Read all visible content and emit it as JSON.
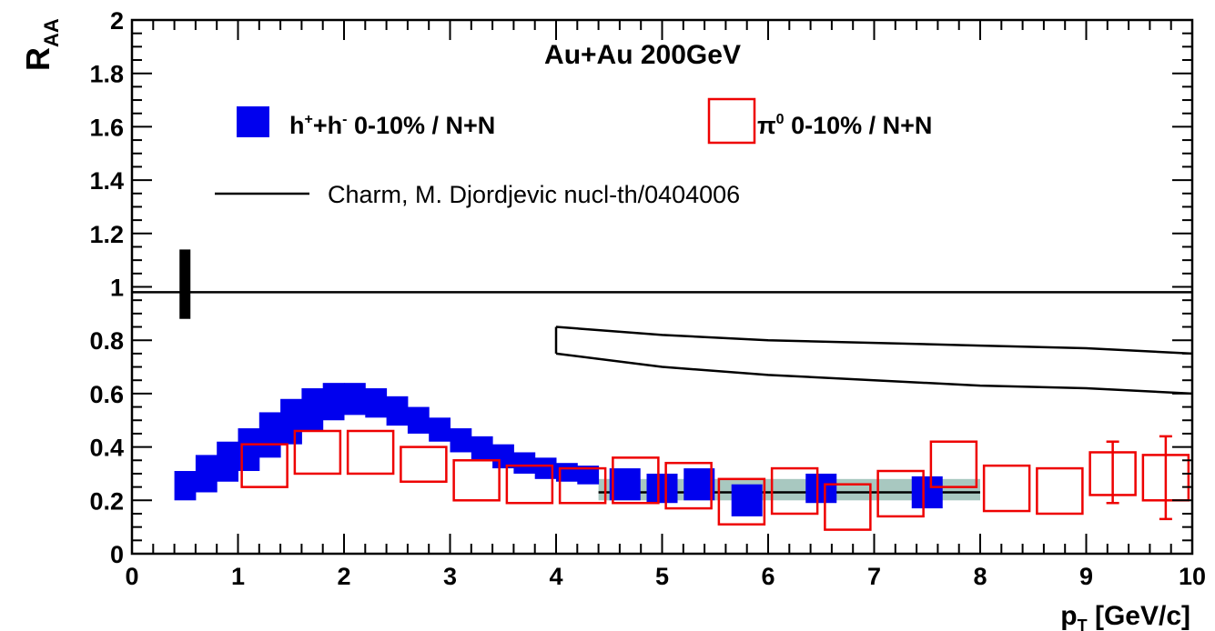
{
  "chart_data": {
    "type": "scatter",
    "title": "Au+Au 200GeV",
    "ylabel_main": "R",
    "ylabel_sub": "AA",
    "xlabel_main": "p",
    "xlabel_sub": "T",
    "xlabel_unit": " [GeV/c]",
    "xlim": [
      0,
      10
    ],
    "ylim": [
      0,
      2
    ],
    "x_ticks": [
      "0",
      "1",
      "2",
      "3",
      "4",
      "5",
      "6",
      "7",
      "8",
      "9",
      "10"
    ],
    "y_ticks": [
      {
        "v": 0,
        "t": "0"
      },
      {
        "v": 0.2,
        "t": "0.2"
      },
      {
        "v": 0.4,
        "t": "0.4"
      },
      {
        "v": 0.6,
        "t": "0.6"
      },
      {
        "v": 0.8,
        "t": "0.8"
      },
      {
        "v": 1.0,
        "t": "1"
      },
      {
        "v": 1.2,
        "t": "1.2"
      },
      {
        "v": 1.4,
        "t": "1.4"
      },
      {
        "v": 1.6,
        "t": "1.6"
      },
      {
        "v": 1.8,
        "t": "1.8"
      },
      {
        "v": 2.0,
        "t": "2"
      }
    ],
    "reference_line": 0.98,
    "normalization_error_bar": {
      "x": 0.5,
      "y_low": 0.88,
      "y_high": 1.14
    },
    "legend": {
      "hadrons": {
        "pre": "h",
        "sup1": "+",
        "mid": "+h",
        "sup2": "-",
        "post": " 0-10% / N+N"
      },
      "pi0": {
        "pre": "π",
        "sup": "0",
        "post": " 0-10% / N+N"
      },
      "charm": "Charm, M. Djordjevic nucl-th/0404006"
    },
    "colors": {
      "hadrons": "#0000ee",
      "pi0": "#ee0000",
      "syst_band": "#a8c8c0",
      "theory": "#000000"
    },
    "series": [
      {
        "name": "h+ + h- 0-10% / N+N (band)",
        "band": [
          {
            "x": 0.5,
            "lo": 0.2,
            "hi": 0.31
          },
          {
            "x": 0.7,
            "lo": 0.23,
            "hi": 0.37
          },
          {
            "x": 0.9,
            "lo": 0.27,
            "hi": 0.42
          },
          {
            "x": 1.1,
            "lo": 0.31,
            "hi": 0.47
          },
          {
            "x": 1.3,
            "lo": 0.36,
            "hi": 0.53
          },
          {
            "x": 1.5,
            "lo": 0.41,
            "hi": 0.58
          },
          {
            "x": 1.7,
            "lo": 0.46,
            "hi": 0.62
          },
          {
            "x": 1.9,
            "lo": 0.5,
            "hi": 0.64
          },
          {
            "x": 2.1,
            "lo": 0.52,
            "hi": 0.64
          },
          {
            "x": 2.3,
            "lo": 0.51,
            "hi": 0.62
          },
          {
            "x": 2.5,
            "lo": 0.48,
            "hi": 0.59
          },
          {
            "x": 2.7,
            "lo": 0.45,
            "hi": 0.55
          },
          {
            "x": 2.9,
            "lo": 0.42,
            "hi": 0.51
          },
          {
            "x": 3.1,
            "lo": 0.38,
            "hi": 0.47
          },
          {
            "x": 3.3,
            "lo": 0.35,
            "hi": 0.44
          },
          {
            "x": 3.5,
            "lo": 0.32,
            "hi": 0.41
          },
          {
            "x": 3.7,
            "lo": 0.3,
            "hi": 0.38
          },
          {
            "x": 3.9,
            "lo": 0.28,
            "hi": 0.36
          },
          {
            "x": 4.1,
            "lo": 0.27,
            "hi": 0.34
          },
          {
            "x": 4.3,
            "lo": 0.26,
            "hi": 0.33
          }
        ]
      },
      {
        "name": "h+ + h- 0-10% / N+N (points)",
        "points": [
          {
            "x": 4.65,
            "lo": 0.2,
            "hi": 0.32
          },
          {
            "x": 5.0,
            "lo": 0.19,
            "hi": 0.3
          },
          {
            "x": 5.35,
            "lo": 0.2,
            "hi": 0.32
          },
          {
            "x": 5.8,
            "lo": 0.14,
            "hi": 0.26
          },
          {
            "x": 6.5,
            "lo": 0.19,
            "hi": 0.3
          },
          {
            "x": 7.5,
            "lo": 0.17,
            "hi": 0.29
          }
        ]
      },
      {
        "name": "π0 0-10% / N+N",
        "points": [
          {
            "x": 1.25,
            "lo": 0.25,
            "hi": 0.41
          },
          {
            "x": 1.75,
            "lo": 0.3,
            "hi": 0.46
          },
          {
            "x": 2.25,
            "lo": 0.3,
            "hi": 0.46
          },
          {
            "x": 2.75,
            "lo": 0.27,
            "hi": 0.4
          },
          {
            "x": 3.25,
            "lo": 0.2,
            "hi": 0.35
          },
          {
            "x": 3.75,
            "lo": 0.19,
            "hi": 0.33
          },
          {
            "x": 4.25,
            "lo": 0.19,
            "hi": 0.32
          },
          {
            "x": 4.75,
            "lo": 0.19,
            "hi": 0.36
          },
          {
            "x": 5.25,
            "lo": 0.17,
            "hi": 0.34
          },
          {
            "x": 5.75,
            "lo": 0.11,
            "hi": 0.28
          },
          {
            "x": 6.25,
            "lo": 0.15,
            "hi": 0.32
          },
          {
            "x": 6.75,
            "lo": 0.09,
            "hi": 0.26
          },
          {
            "x": 7.25,
            "lo": 0.14,
            "hi": 0.31
          },
          {
            "x": 7.75,
            "lo": 0.25,
            "hi": 0.42
          },
          {
            "x": 8.25,
            "lo": 0.16,
            "hi": 0.33
          },
          {
            "x": 8.75,
            "lo": 0.15,
            "hi": 0.32
          },
          {
            "x": 9.25,
            "lo": 0.22,
            "hi": 0.38,
            "err_lo": 0.19,
            "err_hi": 0.42
          },
          {
            "x": 9.75,
            "lo": 0.2,
            "hi": 0.37,
            "err_lo": 0.13,
            "err_hi": 0.44
          }
        ]
      },
      {
        "name": "systematic band",
        "band": [
          {
            "x": 4.4,
            "lo": 0.2,
            "hi": 0.28
          },
          {
            "x": 8.0,
            "lo": 0.2,
            "hi": 0.28
          }
        ]
      },
      {
        "name": "Charm, M. Djordjevic nucl-th/0404006",
        "upper": [
          {
            "x": 4.0,
            "y": 0.85
          },
          {
            "x": 5.0,
            "y": 0.82
          },
          {
            "x": 6.0,
            "y": 0.8
          },
          {
            "x": 7.0,
            "y": 0.79
          },
          {
            "x": 8.0,
            "y": 0.78
          },
          {
            "x": 9.0,
            "y": 0.77
          },
          {
            "x": 10.0,
            "y": 0.75
          }
        ],
        "lower": [
          {
            "x": 4.0,
            "y": 0.75
          },
          {
            "x": 5.0,
            "y": 0.7
          },
          {
            "x": 6.0,
            "y": 0.67
          },
          {
            "x": 7.0,
            "y": 0.65
          },
          {
            "x": 8.0,
            "y": 0.63
          },
          {
            "x": 9.0,
            "y": 0.62
          },
          {
            "x": 10.0,
            "y": 0.6
          }
        ],
        "fit_line": {
          "x0": 4.4,
          "x1": 8.0,
          "y": 0.23
        }
      }
    ]
  }
}
